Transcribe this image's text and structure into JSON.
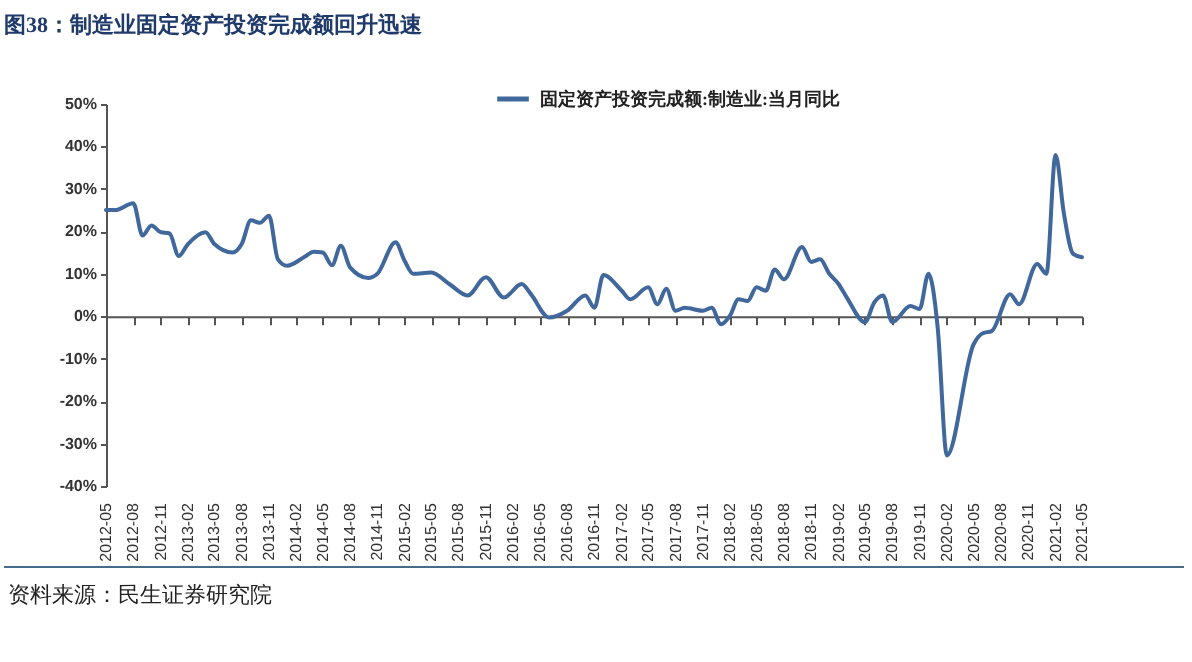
{
  "chart_data": {
    "type": "line",
    "title": "图38：制造业固定资产投资完成额回升迅速",
    "annotations": [
      "资料来源：民生证券研究院"
    ],
    "x": [
      "2012-05",
      "2012-06",
      "2012-08",
      "2012-09",
      "2012-10",
      "2012-11",
      "2012-12",
      "2013-01",
      "2013-02",
      "2013-04",
      "2013-05",
      "2013-07",
      "2013-08",
      "2013-09",
      "2013-10",
      "2013-11",
      "2013-12",
      "2014-01",
      "2014-03",
      "2014-04",
      "2014-05",
      "2014-06",
      "2014-07",
      "2014-08",
      "2014-10",
      "2014-11",
      "2015-01",
      "2015-02",
      "2015-03",
      "2015-05",
      "2015-07",
      "2015-09",
      "2015-11",
      "2016-01",
      "2016-03",
      "2016-04",
      "2016-06",
      "2016-08",
      "2016-10",
      "2016-11",
      "2016-12",
      "2017-02",
      "2017-03",
      "2017-05",
      "2017-06",
      "2017-07",
      "2017-08",
      "2017-09",
      "2017-11",
      "2017-12",
      "2018-01",
      "2018-02",
      "2018-03",
      "2018-04",
      "2018-05",
      "2018-06",
      "2018-07",
      "2018-08",
      "2018-10",
      "2018-11",
      "2018-12",
      "2019-01",
      "2019-02",
      "2019-03",
      "2019-05",
      "2019-06",
      "2019-07",
      "2019-08",
      "2019-10",
      "2019-11",
      "2019-12",
      "2020-01",
      "2020-02",
      "2020-05",
      "2020-06",
      "2020-07",
      "2020-09",
      "2020-10",
      "2020-12",
      "2021-01",
      "2021-02",
      "2021-03",
      "2021-04",
      "2021-05"
    ],
    "series": [
      {
        "name": "固定资产投资完成额:制造业:当月同比",
        "color": "#41689c",
        "values": [
          25,
          25,
          26.6,
          19,
          21.4,
          19.8,
          19.5,
          14.2,
          17,
          19.8,
          17,
          15,
          17,
          22.6,
          22,
          23.7,
          13.4,
          11.9,
          14,
          15.2,
          15,
          12,
          16.6,
          11.5,
          9,
          10,
          17.4,
          13,
          10,
          10.3,
          7.6,
          4.9,
          9.2,
          4.4,
          7.6,
          5.2,
          -0.3,
          1.3,
          4.9,
          2,
          9.7,
          6,
          4,
          6.8,
          2.8,
          6.5,
          1.3,
          2,
          1.3,
          2,
          -1.9,
          0.2,
          4,
          3.6,
          6.8,
          6,
          11,
          8.7,
          16.3,
          12.8,
          13.4,
          10,
          7.6,
          4.4,
          -1.4,
          3.2,
          4.9,
          -1.4,
          2.4,
          1.7,
          10,
          -2.7,
          -32.8,
          -6.6,
          -4,
          -3.5,
          5.2,
          2.8,
          12.3,
          10,
          38,
          24.2,
          14.7,
          13.9
        ]
      }
    ],
    "xlim": [
      "2012-05",
      "2021-05"
    ],
    "xticks": [
      "2012-05",
      "2012-08",
      "2012-11",
      "2013-02",
      "2013-05",
      "2013-08",
      "2013-11",
      "2014-02",
      "2014-05",
      "2014-08",
      "2014-11",
      "2015-02",
      "2015-05",
      "2015-08",
      "2015-11",
      "2016-02",
      "2016-05",
      "2016-08",
      "2016-11",
      "2017-02",
      "2017-05",
      "2017-08",
      "2017-11",
      "2018-02",
      "2018-05",
      "2018-08",
      "2018-11",
      "2019-02",
      "2019-05",
      "2019-08",
      "2019-11",
      "2020-02",
      "2020-05",
      "2020-08",
      "2020-11",
      "2021-02",
      "2021-05"
    ],
    "ylim": [
      -40,
      50
    ],
    "yticks": [
      {
        "value": -40,
        "label": "-40%"
      },
      {
        "value": -30,
        "label": "-30%"
      },
      {
        "value": -20,
        "label": "-20%"
      },
      {
        "value": -10,
        "label": "-10%"
      },
      {
        "value": 0,
        "label": "0%"
      },
      {
        "value": 10,
        "label": "10%"
      },
      {
        "value": 20,
        "label": "20%"
      },
      {
        "value": 30,
        "label": "30%"
      },
      {
        "value": 40,
        "label": "40%"
      },
      {
        "value": 50,
        "label": "50%"
      }
    ],
    "legend": "top",
    "marker": "none",
    "line_style": "solid"
  }
}
